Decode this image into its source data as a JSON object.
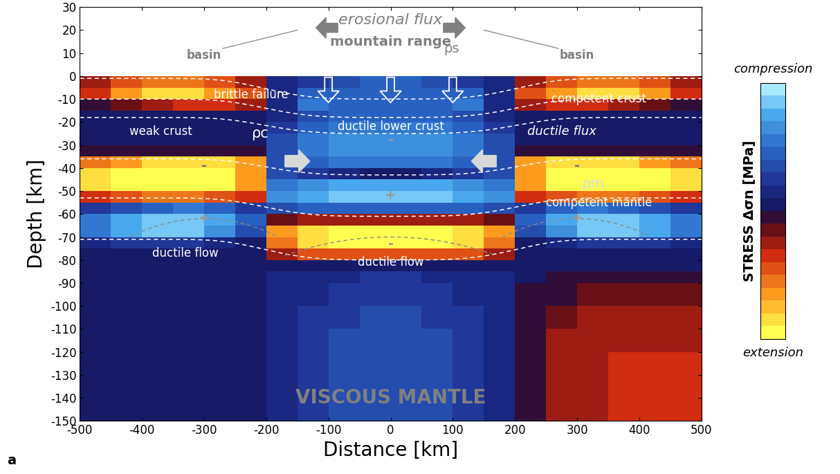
{
  "chart_data": {
    "type": "heatmap",
    "panel_label": "a",
    "xlabel": "Distance [km]",
    "ylabel": "Depth [km]",
    "xlim": [
      -500,
      500
    ],
    "xticks": [
      -500,
      -400,
      -300,
      -200,
      -100,
      0,
      100,
      200,
      300,
      400,
      500
    ],
    "ylim": [
      -150,
      30
    ],
    "yticks": [
      -150,
      -140,
      -130,
      -120,
      -110,
      -100,
      -90,
      -80,
      -70,
      -60,
      -50,
      -40,
      -30,
      -20,
      -10,
      0,
      10,
      20,
      30
    ],
    "x_edges": [
      -500,
      -450,
      -400,
      -350,
      -300,
      -250,
      -200,
      -150,
      -100,
      -50,
      0,
      50,
      100,
      150,
      200,
      250,
      300,
      350,
      400,
      450,
      500
    ],
    "y_edges": [
      0,
      -5,
      -10,
      -15,
      -20,
      -25,
      -30,
      -35,
      -40,
      -45,
      -50,
      -55,
      -60,
      -65,
      -70,
      -75,
      -80,
      -85,
      -90,
      -100,
      -110,
      -120,
      -130,
      -140,
      -150
    ],
    "cells": [
      [
        -0.3,
        -0.5,
        -0.6,
        -0.6,
        -0.5,
        -0.3,
        0.1,
        0.2,
        0.3,
        0.4,
        0.4,
        0.3,
        0.2,
        0.1,
        -0.3,
        -0.5,
        -0.6,
        -0.6,
        -0.5,
        -0.3
      ],
      [
        -0.4,
        -0.7,
        -0.8,
        -0.8,
        -0.7,
        -0.5,
        0.1,
        0.4,
        0.4,
        0.4,
        0.4,
        0.4,
        0.4,
        0.1,
        -0.5,
        -0.7,
        -0.8,
        -0.8,
        -0.7,
        -0.4
      ],
      [
        -0.1,
        -0.2,
        -0.3,
        -0.4,
        -0.4,
        -0.3,
        0.1,
        0.5,
        0.4,
        0.4,
        0.4,
        0.4,
        0.5,
        0.1,
        -0.3,
        -0.4,
        -0.4,
        -0.3,
        -0.2,
        -0.1
      ],
      [
        0,
        0,
        0,
        0,
        0,
        0,
        0.1,
        0.3,
        0.4,
        0.4,
        0.4,
        0.4,
        0.3,
        0.1,
        0,
        0,
        0,
        0,
        0,
        0
      ],
      [
        0,
        0,
        0,
        0,
        0,
        0.05,
        0.2,
        0.4,
        0.5,
        0.5,
        0.5,
        0.5,
        0.4,
        0.2,
        0.05,
        0,
        0,
        0,
        0,
        0
      ],
      [
        0,
        0,
        0,
        0,
        0,
        0.05,
        0.3,
        0.5,
        0.6,
        0.6,
        0.6,
        0.6,
        0.5,
        0.3,
        0.05,
        0,
        0,
        0,
        0,
        0
      ],
      [
        -0.1,
        -0.1,
        -0.1,
        -0.1,
        -0.1,
        -0.05,
        0.3,
        0.5,
        0.6,
        0.6,
        0.6,
        0.6,
        0.5,
        0.3,
        -0.05,
        -0.1,
        -0.1,
        -0.1,
        -0.1,
        -0.1
      ],
      [
        -0.6,
        -0.7,
        -0.8,
        -0.8,
        -0.8,
        -0.7,
        0.3,
        0.4,
        0.5,
        0.5,
        0.5,
        0.5,
        0.4,
        0.3,
        -0.7,
        -0.8,
        -0.8,
        -0.8,
        -0.7,
        -0.6
      ],
      [
        -0.8,
        -0.9,
        -0.95,
        -0.95,
        -0.9,
        -0.7,
        0.3,
        0.2,
        0.1,
        0.05,
        0.05,
        0.1,
        0.2,
        0.3,
        -0.7,
        -0.9,
        -0.95,
        -0.95,
        -0.9,
        -0.8
      ],
      [
        -0.8,
        -0.9,
        -0.95,
        -0.95,
        -0.9,
        -0.7,
        0.5,
        0.6,
        0.7,
        0.7,
        0.7,
        0.7,
        0.6,
        0.5,
        -0.7,
        -0.9,
        -0.95,
        -0.95,
        -0.9,
        -0.8
      ],
      [
        -0.4,
        -0.5,
        -0.6,
        -0.6,
        -0.5,
        -0.4,
        0.6,
        0.7,
        0.8,
        0.8,
        0.8,
        0.8,
        0.7,
        0.6,
        -0.4,
        -0.5,
        -0.6,
        -0.6,
        -0.5,
        -0.4
      ],
      [
        0.2,
        0.3,
        0.4,
        0.5,
        0.4,
        0.2,
        0.3,
        0.4,
        0.4,
        0.4,
        0.4,
        0.4,
        0.4,
        0.3,
        0.2,
        0.4,
        0.5,
        0.4,
        0.3,
        0.2
      ],
      [
        0.5,
        0.7,
        0.8,
        0.8,
        0.7,
        0.4,
        -0.2,
        -0.3,
        -0.3,
        -0.3,
        -0.3,
        -0.3,
        -0.3,
        -0.2,
        0.4,
        0.7,
        0.8,
        0.8,
        0.7,
        0.5
      ],
      [
        0.5,
        0.7,
        0.8,
        0.8,
        0.6,
        0.3,
        -0.7,
        -0.8,
        -0.9,
        -0.9,
        -0.9,
        -0.9,
        -0.8,
        -0.7,
        0.3,
        0.6,
        0.8,
        0.8,
        0.7,
        0.5
      ],
      [
        0.1,
        0.2,
        0.2,
        0.2,
        0.1,
        0.05,
        -0.6,
        -0.8,
        -0.9,
        -0.9,
        -0.9,
        -0.9,
        -0.8,
        -0.6,
        0.05,
        0.1,
        0.2,
        0.2,
        0.2,
        0.1
      ],
      [
        0,
        0,
        0,
        0,
        0,
        0,
        -0.3,
        -0.5,
        -0.5,
        -0.5,
        -0.5,
        -0.5,
        -0.5,
        -0.3,
        0,
        0,
        0,
        0,
        0,
        0
      ],
      [
        0,
        0,
        0,
        0,
        0,
        0,
        0,
        0.05,
        0.05,
        0.05,
        0.05,
        0.05,
        0.05,
        0,
        0,
        0,
        0,
        0,
        0,
        0
      ],
      [
        0.05,
        0.05,
        0.05,
        0.05,
        0.05,
        0.05,
        0.1,
        0.15,
        0.15,
        0.2,
        0.2,
        0.15,
        0.15,
        0.1,
        0,
        -0.05,
        -0.1,
        -0.1,
        -0.1,
        -0.1
      ],
      [
        0.05,
        0.05,
        0.05,
        0.05,
        0.05,
        0.05,
        0.1,
        0.15,
        0.2,
        0.25,
        0.25,
        0.2,
        0.15,
        0.1,
        -0.05,
        -0.1,
        -0.15,
        -0.15,
        -0.15,
        -0.15
      ],
      [
        0.05,
        0.05,
        0.05,
        0.05,
        0.05,
        0.05,
        0.1,
        0.2,
        0.25,
        0.3,
        0.3,
        0.25,
        0.2,
        0.1,
        -0.1,
        -0.2,
        -0.25,
        -0.25,
        -0.25,
        -0.25
      ],
      [
        0.05,
        0.05,
        0.05,
        0.05,
        0.05,
        0.05,
        0.1,
        0.2,
        0.3,
        0.3,
        0.3,
        0.3,
        0.2,
        0.1,
        -0.1,
        -0.25,
        -0.3,
        -0.3,
        -0.3,
        -0.3
      ],
      [
        0.05,
        0.05,
        0.05,
        0.05,
        0.05,
        0.05,
        0.1,
        0.2,
        0.3,
        0.3,
        0.3,
        0.3,
        0.2,
        0.1,
        -0.1,
        -0.25,
        -0.3,
        -0.35,
        -0.35,
        -0.35
      ],
      [
        0.05,
        0.05,
        0.05,
        0.05,
        0.05,
        0.05,
        0.1,
        0.2,
        0.3,
        0.35,
        0.35,
        0.3,
        0.2,
        0.1,
        -0.1,
        -0.25,
        -0.3,
        -0.35,
        -0.35,
        -0.35
      ],
      [
        0.05,
        0.05,
        0.05,
        0.05,
        0.05,
        0.05,
        0.1,
        0.2,
        0.3,
        0.35,
        0.35,
        0.3,
        0.2,
        0.1,
        -0.1,
        -0.25,
        -0.3,
        -0.35,
        -0.35,
        -0.35
      ]
    ],
    "colorbar": {
      "label": "STRESS Δσn [MPa]",
      "range": [
        -1,
        1
      ],
      "top_label": "compression",
      "bottom_label": "extension"
    },
    "annotations": [
      "erosional flux",
      "mountain range",
      "ρs",
      "basin",
      "basin",
      "brittle failure",
      "competent crust",
      "weak crust",
      "ρc",
      "ductile lower crust",
      "ductile flux",
      "ρm",
      "competent mantle",
      "ductile flow",
      "ductile flow",
      "VISCOUS MANTLE",
      "-",
      "+",
      "-",
      "+",
      "+",
      "-",
      "-"
    ]
  }
}
